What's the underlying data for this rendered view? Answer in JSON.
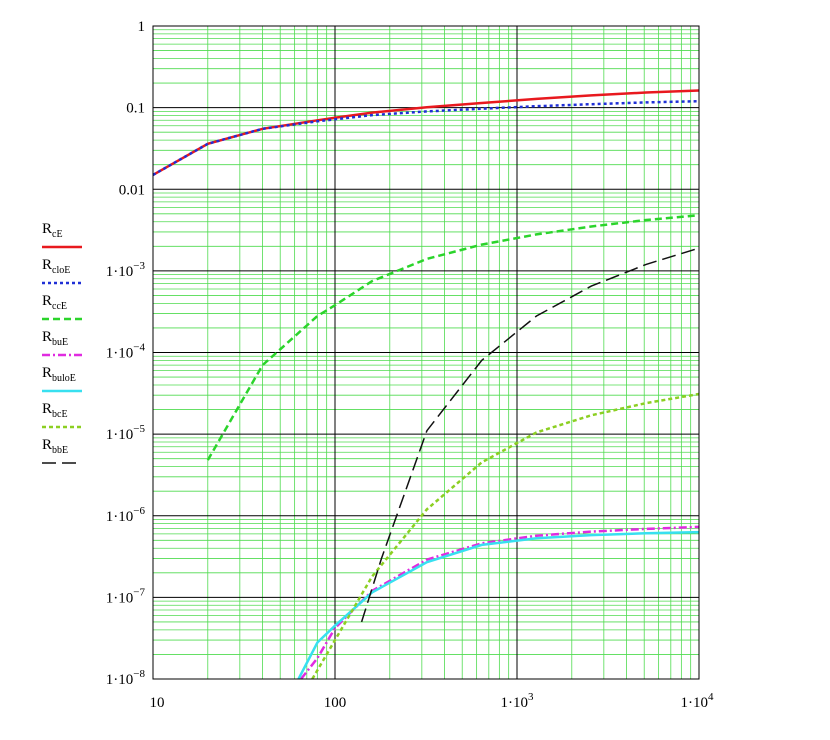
{
  "chart_data": {
    "type": "line",
    "title": "",
    "xlabel": "",
    "ylabel": "",
    "x_scale": "log",
    "y_scale": "log",
    "xlim": [
      10,
      10000
    ],
    "ylim": [
      1e-08,
      1
    ],
    "grid": "on (major black, minor green)",
    "legend_position": "left",
    "x_ticks": [
      {
        "value": 10,
        "label": "10"
      },
      {
        "value": 100,
        "label": "100"
      },
      {
        "value": 1000,
        "label": "1·10",
        "exp": "3"
      },
      {
        "value": 10000,
        "label": "1·10",
        "exp": "4"
      }
    ],
    "y_ticks": [
      {
        "value": 1,
        "label": "1"
      },
      {
        "value": 0.1,
        "label": "0.1"
      },
      {
        "value": 0.01,
        "label": "0.01"
      },
      {
        "value": 0.001,
        "label": "1·10",
        "exp": "−3"
      },
      {
        "value": 0.0001,
        "label": "1·10",
        "exp": "−4"
      },
      {
        "value": 1e-05,
        "label": "1·10",
        "exp": "−5"
      },
      {
        "value": 1e-06,
        "label": "1·10",
        "exp": "−6"
      },
      {
        "value": 1e-07,
        "label": "1·10",
        "exp": "−7"
      },
      {
        "value": 1e-08,
        "label": "1·10",
        "exp": "−8"
      }
    ],
    "series": [
      {
        "name": "R",
        "sub": "cE",
        "color": "#e8191e",
        "dash": "",
        "width": 2.5,
        "x": [
          10,
          20,
          40,
          80,
          100,
          160,
          320,
          640,
          1280,
          2560,
          5120,
          10000
        ],
        "y": [
          0.015,
          0.036,
          0.055,
          0.07,
          0.075,
          0.087,
          0.101,
          0.114,
          0.128,
          0.141,
          0.153,
          0.162
        ]
      },
      {
        "name": "R",
        "sub": "cloE",
        "color": "#1f2fd6",
        "dash": "3,3",
        "width": 2.5,
        "x": [
          10,
          20,
          40,
          80,
          100,
          160,
          320,
          640,
          1280,
          2560,
          5120,
          10000
        ],
        "y": [
          0.015,
          0.036,
          0.055,
          0.068,
          0.072,
          0.081,
          0.09,
          0.097,
          0.104,
          0.11,
          0.116,
          0.12
        ]
      },
      {
        "name": "R",
        "sub": "ccE",
        "color": "#2bd42b",
        "dash": "7,4",
        "width": 2.5,
        "x": [
          20,
          40,
          80,
          100,
          160,
          320,
          640,
          1280,
          2560,
          5120,
          10000
        ],
        "y": [
          4.8e-06,
          7e-05,
          0.00028,
          0.00038,
          0.00075,
          0.0014,
          0.0021,
          0.0028,
          0.0035,
          0.0042,
          0.0048
        ]
      },
      {
        "name": "R",
        "sub": "buE",
        "color": "#e02be0",
        "dash": "8,3,2,3",
        "width": 2.5,
        "x": [
          65,
          80,
          100,
          160,
          320,
          640,
          1280,
          2560,
          5120,
          10000
        ],
        "y": [
          1e-08,
          1.8e-08,
          4.2e-08,
          1.2e-07,
          2.9e-07,
          4.6e-07,
          5.7e-07,
          6.4e-07,
          6.9e-07,
          7.3e-07
        ]
      },
      {
        "name": "R",
        "sub": "buloE",
        "color": "#38e0f0",
        "dash": "",
        "width": 2.5,
        "x": [
          63,
          80,
          100,
          160,
          320,
          640,
          1280,
          2560,
          5120,
          10000
        ],
        "y": [
          1e-08,
          2.8e-08,
          4.5e-08,
          1.15e-07,
          2.7e-07,
          4.4e-07,
          5.3e-07,
          5.8e-07,
          6.1e-07,
          6.3e-07
        ]
      },
      {
        "name": "R",
        "sub": "bcE",
        "color": "#8ccf22",
        "dash": "4,3",
        "width": 2.5,
        "x": [
          75,
          100,
          160,
          320,
          640,
          1280,
          2560,
          5120,
          10000
        ],
        "y": [
          1e-08,
          3e-08,
          1.8e-07,
          1.2e-06,
          4.5e-06,
          1.05e-05,
          1.7e-05,
          2.4e-05,
          3.1e-05
        ]
      },
      {
        "name": "R",
        "sub": "bbE",
        "color": "#111111",
        "dash": "14,6",
        "width": 1.5,
        "x": [
          140,
          180,
          320,
          640,
          1280,
          2560,
          5120,
          10000
        ],
        "y": [
          5e-08,
          3e-07,
          1.1e-05,
          8e-05,
          0.00028,
          0.00065,
          0.0012,
          0.0019
        ]
      }
    ]
  }
}
